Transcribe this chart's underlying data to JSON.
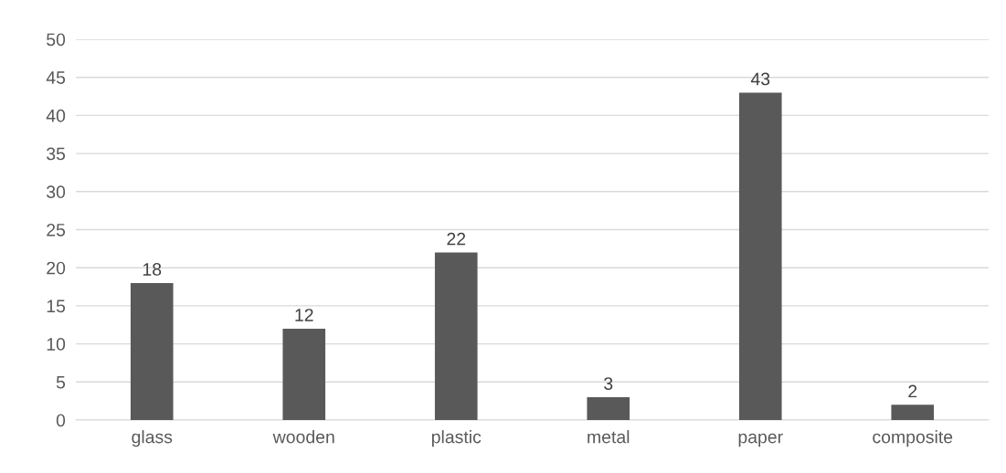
{
  "chart_data": {
    "type": "bar",
    "categories": [
      "glass",
      "wooden",
      "plastic",
      "metal",
      "paper",
      "composite"
    ],
    "values": [
      18,
      12,
      22,
      3,
      43,
      2
    ],
    "color": "#595959",
    "ylim": [
      0,
      50
    ],
    "yticks": [
      0,
      5,
      10,
      15,
      20,
      25,
      30,
      35,
      40,
      45,
      50
    ],
    "grid": "y",
    "data_labels": true
  }
}
